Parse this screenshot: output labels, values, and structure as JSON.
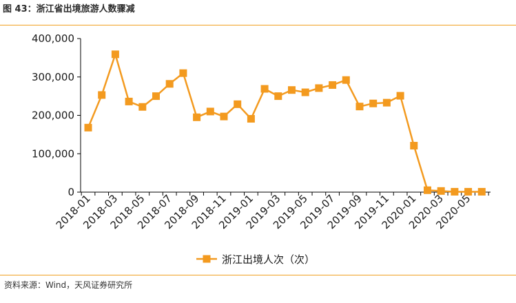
{
  "header": {
    "title": "图 43：浙江省出境旅游人数骤减"
  },
  "footer": {
    "source": "资料来源：Wind，天风证券研究所"
  },
  "colors": {
    "series": "#f39a1f",
    "rule": "#f0a020",
    "axis": "#000000"
  },
  "chart_data": {
    "type": "line",
    "x": [
      "2018-01",
      "2018-02",
      "2018-03",
      "2018-04",
      "2018-05",
      "2018-06",
      "2018-07",
      "2018-08",
      "2018-09",
      "2018-10",
      "2018-11",
      "2018-12",
      "2019-01",
      "2019-02",
      "2019-03",
      "2019-04",
      "2019-05",
      "2019-06",
      "2019-07",
      "2019-08",
      "2019-09",
      "2019-10",
      "2019-11",
      "2019-12",
      "2020-01",
      "2020-02",
      "2020-03",
      "2020-04",
      "2020-05",
      "2020-06"
    ],
    "x_tick_labels": [
      "2018-01",
      "2018-03",
      "2018-05",
      "2018-07",
      "2018-09",
      "2018-11",
      "2019-01",
      "2019-03",
      "2019-05",
      "2019-07",
      "2019-09",
      "2019-11",
      "2020-01",
      "2020-03",
      "2020-05"
    ],
    "series": [
      {
        "name": "浙江出境人次（次）",
        "values": [
          168000,
          253000,
          359000,
          236000,
          222000,
          250000,
          282000,
          310000,
          195000,
          210000,
          197000,
          229000,
          191000,
          269000,
          250000,
          266000,
          260000,
          271000,
          279000,
          292000,
          223000,
          231000,
          233000,
          251000,
          121000,
          5000,
          3000,
          1000,
          1000,
          1000
        ]
      }
    ],
    "y_ticks": [
      "0",
      "100,000",
      "200,000",
      "300,000",
      "400,000"
    ],
    "ylim": [
      0,
      400000
    ],
    "grid": false,
    "legend": "bottom-center",
    "marker": "square"
  }
}
